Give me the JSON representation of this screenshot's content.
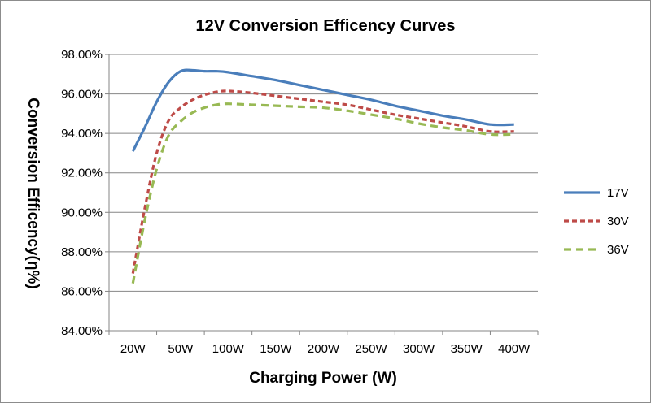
{
  "chart_data": {
    "type": "line",
    "title": "12V  Conversion Efficency Curves",
    "xlabel": "Charging  Power  (W)",
    "ylabel": "Conversion Efficency(η%)",
    "categories": [
      "20W",
      "50W",
      "100W",
      "150W",
      "200W",
      "250W",
      "300W",
      "350W",
      "400W"
    ],
    "y_tick_labels": [
      "84.00%",
      "86.00%",
      "88.00%",
      "90.00%",
      "92.00%",
      "94.00%",
      "96.00%",
      "98.00%"
    ],
    "ylim": [
      84,
      98
    ],
    "y_step": 2,
    "grid": true,
    "legend_position": "right",
    "series": [
      {
        "name": "17V",
        "color": "#4a7ebb",
        "dash": "solid",
        "x": [
          0,
          0.25,
          0.5,
          0.75,
          1,
          1.25,
          1.5,
          1.75,
          2,
          2.5,
          3,
          3.5,
          4,
          4.5,
          5,
          5.5,
          6,
          6.5,
          7,
          7.5,
          8
        ],
        "values": [
          93.1,
          94.3,
          95.6,
          96.6,
          97.15,
          97.2,
          97.15,
          97.15,
          97.1,
          96.9,
          96.7,
          96.45,
          96.2,
          95.95,
          95.7,
          95.4,
          95.15,
          94.9,
          94.7,
          94.45,
          94.45
        ]
      },
      {
        "name": "30V",
        "color": "#be4b48",
        "dash": "dashed",
        "x": [
          0,
          0.25,
          0.5,
          0.75,
          1,
          1.25,
          1.5,
          1.75,
          2,
          2.5,
          3,
          3.5,
          4,
          4.5,
          5,
          5.5,
          6,
          6.5,
          7,
          7.5,
          8
        ],
        "values": [
          86.9,
          90.2,
          93.0,
          94.65,
          95.3,
          95.7,
          95.95,
          96.1,
          96.15,
          96.05,
          95.9,
          95.75,
          95.6,
          95.45,
          95.2,
          94.95,
          94.75,
          94.55,
          94.35,
          94.1,
          94.1
        ]
      },
      {
        "name": "36V",
        "color": "#98b954",
        "dash": "dashed",
        "x": [
          0,
          0.25,
          0.5,
          0.75,
          1,
          1.25,
          1.5,
          1.75,
          2,
          2.5,
          3,
          3.5,
          4,
          4.5,
          5,
          5.5,
          6,
          6.5,
          7,
          7.5,
          8
        ],
        "values": [
          86.4,
          89.6,
          92.2,
          93.9,
          94.6,
          95.05,
          95.3,
          95.45,
          95.5,
          95.45,
          95.4,
          95.35,
          95.3,
          95.15,
          94.95,
          94.75,
          94.5,
          94.3,
          94.15,
          93.95,
          93.95
        ]
      }
    ]
  }
}
